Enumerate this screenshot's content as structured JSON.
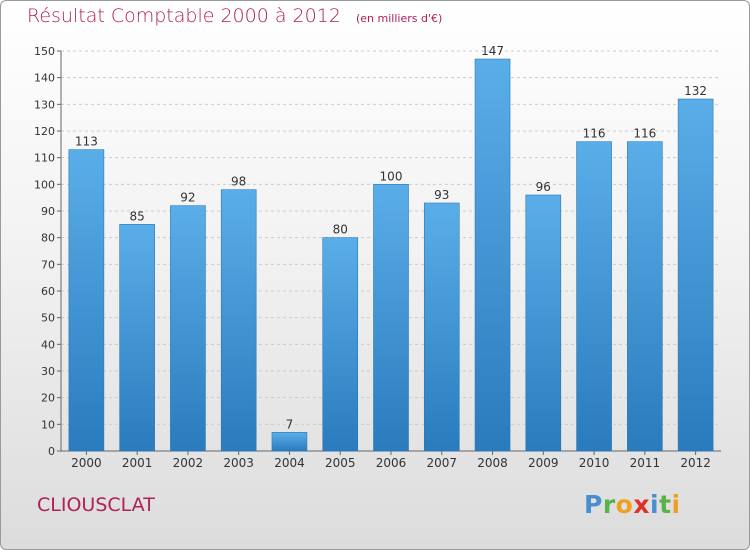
{
  "chart_data": {
    "type": "bar",
    "title": "Résultat Comptable 2000 à 2012",
    "unit_note": "(en milliers d'€)",
    "categories": [
      "2000",
      "2001",
      "2002",
      "2003",
      "2004",
      "2005",
      "2006",
      "2007",
      "2008",
      "2009",
      "2010",
      "2011",
      "2012"
    ],
    "values": [
      113,
      85,
      92,
      98,
      7,
      80,
      100,
      93,
      147,
      96,
      116,
      116,
      132
    ],
    "ylim": [
      0,
      150
    ],
    "yticks": [
      0,
      10,
      20,
      30,
      40,
      50,
      60,
      70,
      80,
      90,
      100,
      110,
      120,
      130,
      140,
      150
    ],
    "grid": true,
    "bar_color_top": "#5aaee8",
    "bar_color_bottom": "#2a7bbd"
  },
  "city": "CLIOUSCLAT",
  "brand": "Proxiti",
  "colors": {
    "title": "#b0205a",
    "grid": "#cccccc"
  }
}
